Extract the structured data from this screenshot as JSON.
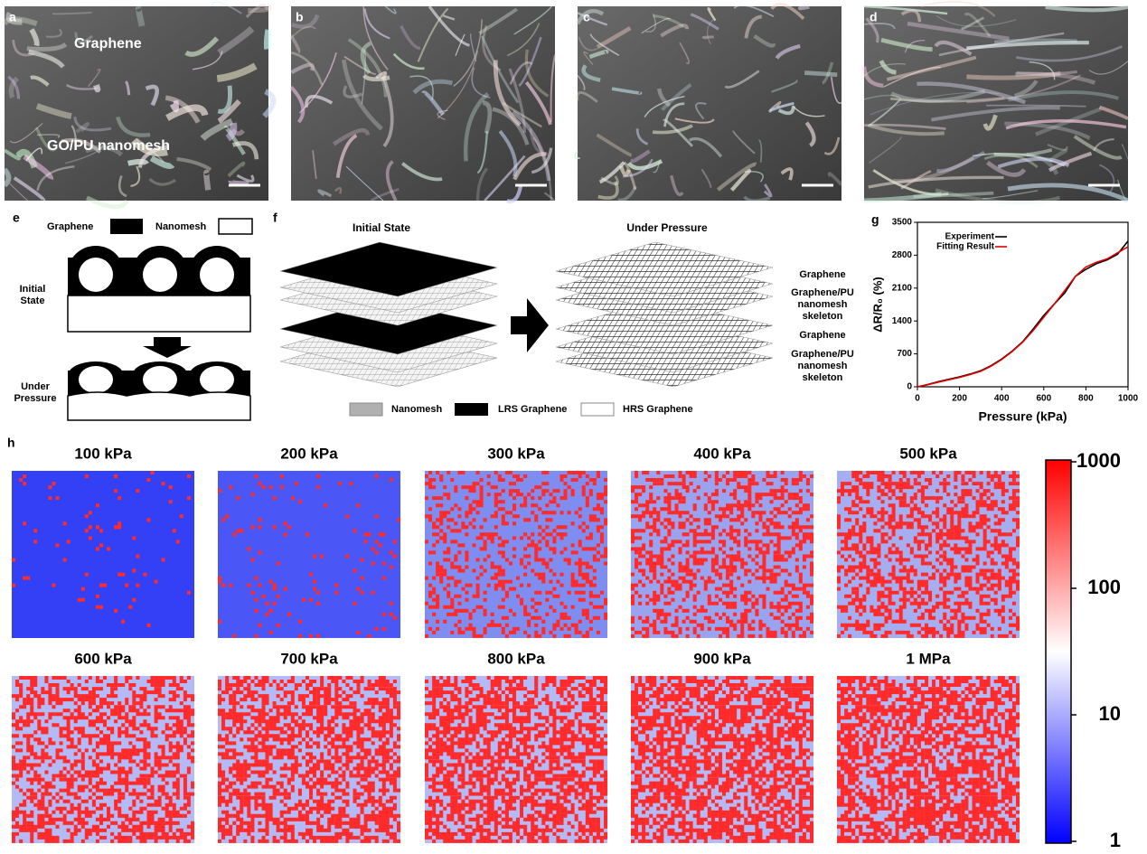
{
  "panel_labels": [
    "a",
    "b",
    "c",
    "d",
    "e",
    "f",
    "g",
    "h"
  ],
  "sem": {
    "annotations": [
      "Graphene",
      "GO/PU nanomesh"
    ]
  },
  "schematic_e": {
    "legend": [
      "Graphene",
      "Nanomesh"
    ],
    "states": [
      "Initial State",
      "Under Pressure"
    ]
  },
  "schematic_f": {
    "titles": [
      "Initial State",
      "Under Pressure"
    ],
    "layers": [
      "Graphene",
      "Graphene/PU nanomesh skeleton",
      "Graphene",
      "Graphene/PU nanomesh skeleton"
    ],
    "legend": [
      "Nanomesh",
      "LRS Graphene",
      "HRS Graphene"
    ]
  },
  "chart_data": {
    "type": "line",
    "x_label": "Pressure (kPa)",
    "y_label": "ΔR/R₀ (%)",
    "x": [
      0,
      50,
      100,
      150,
      200,
      250,
      300,
      350,
      400,
      450,
      500,
      550,
      600,
      650,
      700,
      750,
      800,
      850,
      900,
      950,
      1000
    ],
    "series": [
      {
        "name": "Experiment",
        "color": "#000000",
        "values": [
          0,
          50,
          110,
          160,
          210,
          270,
          340,
          450,
          590,
          760,
          960,
          1230,
          1520,
          1760,
          2000,
          2350,
          2500,
          2620,
          2700,
          2820,
          3100
        ]
      },
      {
        "name": "Fitting Result",
        "color": "#e00000",
        "values": [
          0,
          45,
          100,
          150,
          200,
          260,
          330,
          440,
          580,
          750,
          950,
          1200,
          1480,
          1760,
          2050,
          2350,
          2550,
          2650,
          2720,
          2850,
          2980
        ]
      }
    ],
    "xlim": [
      0,
      1000
    ],
    "xticks": [
      0,
      200,
      400,
      600,
      800,
      1000
    ],
    "ylim": [
      0,
      3500
    ],
    "yticks": [
      0,
      700,
      1400,
      2100,
      2800,
      3500
    ],
    "legend": "upper left"
  },
  "heatmaps": {
    "titles": [
      "100 kPa",
      "200 kPa",
      "300 kPa",
      "400 kPa",
      "500 kPa",
      "600 kPa",
      "700 kPa",
      "800 kPa",
      "900 kPa",
      "1 MPa"
    ],
    "colorbar": {
      "lim": [
        1,
        1000
      ],
      "ticks": [
        1,
        10,
        100,
        1000
      ],
      "log": true
    }
  }
}
